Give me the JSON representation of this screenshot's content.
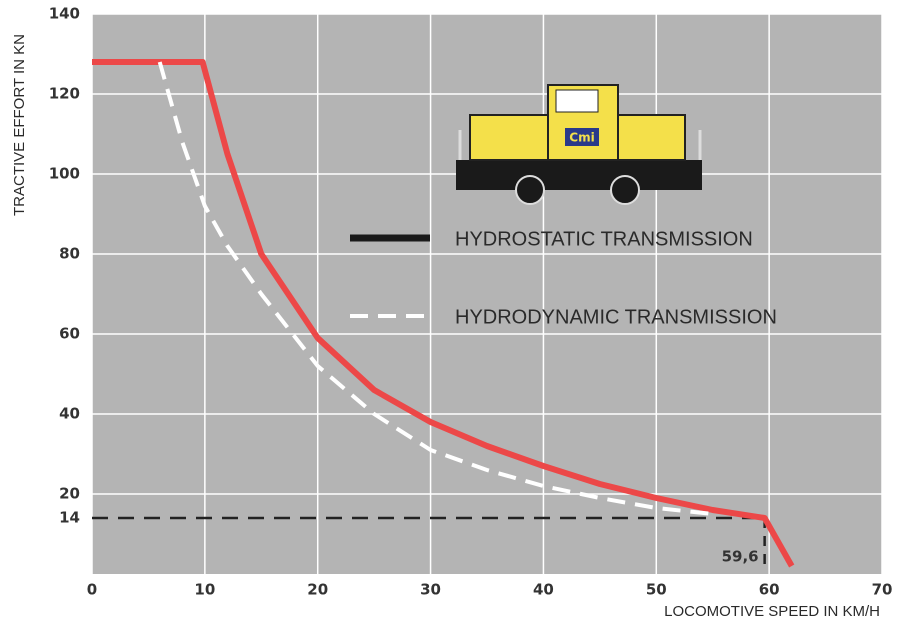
{
  "chart_data": {
    "type": "line",
    "xlabel": "LOCOMOTIVE SPEED IN KM/H",
    "ylabel": "TRACTIVE EFFORT IN KN",
    "xlim": [
      0,
      70
    ],
    "ylim": [
      0,
      140
    ],
    "xticks": [
      0,
      10,
      20,
      30,
      40,
      50,
      60,
      70
    ],
    "yticks": [
      20,
      40,
      60,
      80,
      100,
      120,
      140
    ],
    "grid": true,
    "series": [
      {
        "name": "HYDROSTATIC TRANSMISSION",
        "color": "#ec4848",
        "dash": false,
        "x": [
          0,
          9.8,
          12,
          15,
          20,
          25,
          30,
          35,
          40,
          45,
          50,
          55,
          59.6,
          62
        ],
        "values": [
          128,
          128,
          105,
          80,
          59,
          46,
          38,
          32,
          27,
          22.5,
          19,
          16,
          14,
          2
        ]
      },
      {
        "name": "HYDRODYNAMIC TRANSMISSION",
        "color": "#ffffff",
        "dash": true,
        "x": [
          6,
          7,
          8,
          10,
          12,
          15,
          20,
          25,
          30,
          35,
          40,
          45,
          50,
          55
        ],
        "values": [
          128,
          118,
          108,
          92,
          82,
          70,
          52,
          40,
          31,
          26,
          22,
          19,
          16.5,
          15
        ]
      }
    ],
    "annotations": [
      {
        "axis": "y",
        "value": 14,
        "label": "14"
      },
      {
        "axis": "x",
        "value": 59.6,
        "label": "59,6"
      }
    ],
    "logo_text": "Cmi"
  }
}
